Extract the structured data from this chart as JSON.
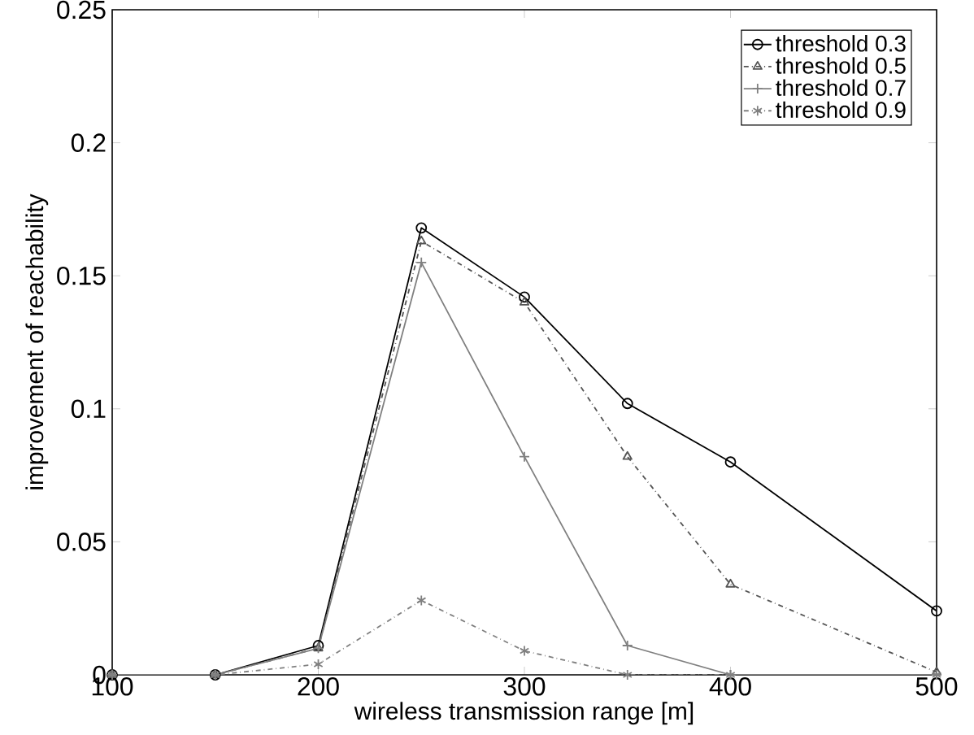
{
  "chart_data": {
    "type": "line",
    "xlabel": "wireless transmission range [m]",
    "ylabel": "improvement of reachability",
    "x": [
      100,
      150,
      200,
      250,
      300,
      350,
      400,
      500
    ],
    "xlim": [
      100,
      500
    ],
    "xticks": [
      100,
      200,
      300,
      400,
      500
    ],
    "ylim": [
      0,
      0.25
    ],
    "yticks": [
      0,
      0.05,
      0.1,
      0.15,
      0.2,
      0.25
    ],
    "legend": "top right",
    "grid": false,
    "series": [
      {
        "name": "threshold 0.3",
        "color": "#000000",
        "marker": "circle",
        "line_style": "solid",
        "values": [
          0,
          0,
          0.011,
          0.168,
          0.142,
          0.102,
          0.08,
          0.024
        ]
      },
      {
        "name": "threshold 0.5",
        "color": "#555555",
        "marker": "triangle",
        "line_style": "dashdot",
        "values": [
          0,
          0,
          0.01,
          0.163,
          0.14,
          0.082,
          0.034,
          0.001
        ]
      },
      {
        "name": "threshold 0.7",
        "color": "#808080",
        "marker": "cross",
        "line_style": "solid",
        "values": [
          0,
          0,
          0.01,
          0.155,
          0.082,
          0.011,
          0,
          0
        ]
      },
      {
        "name": "threshold 0.9",
        "color": "#808080",
        "marker": "cross",
        "line_style": "dashdot",
        "values": [
          0,
          0,
          0.004,
          0.028,
          0.009,
          0,
          0,
          0
        ]
      }
    ]
  }
}
